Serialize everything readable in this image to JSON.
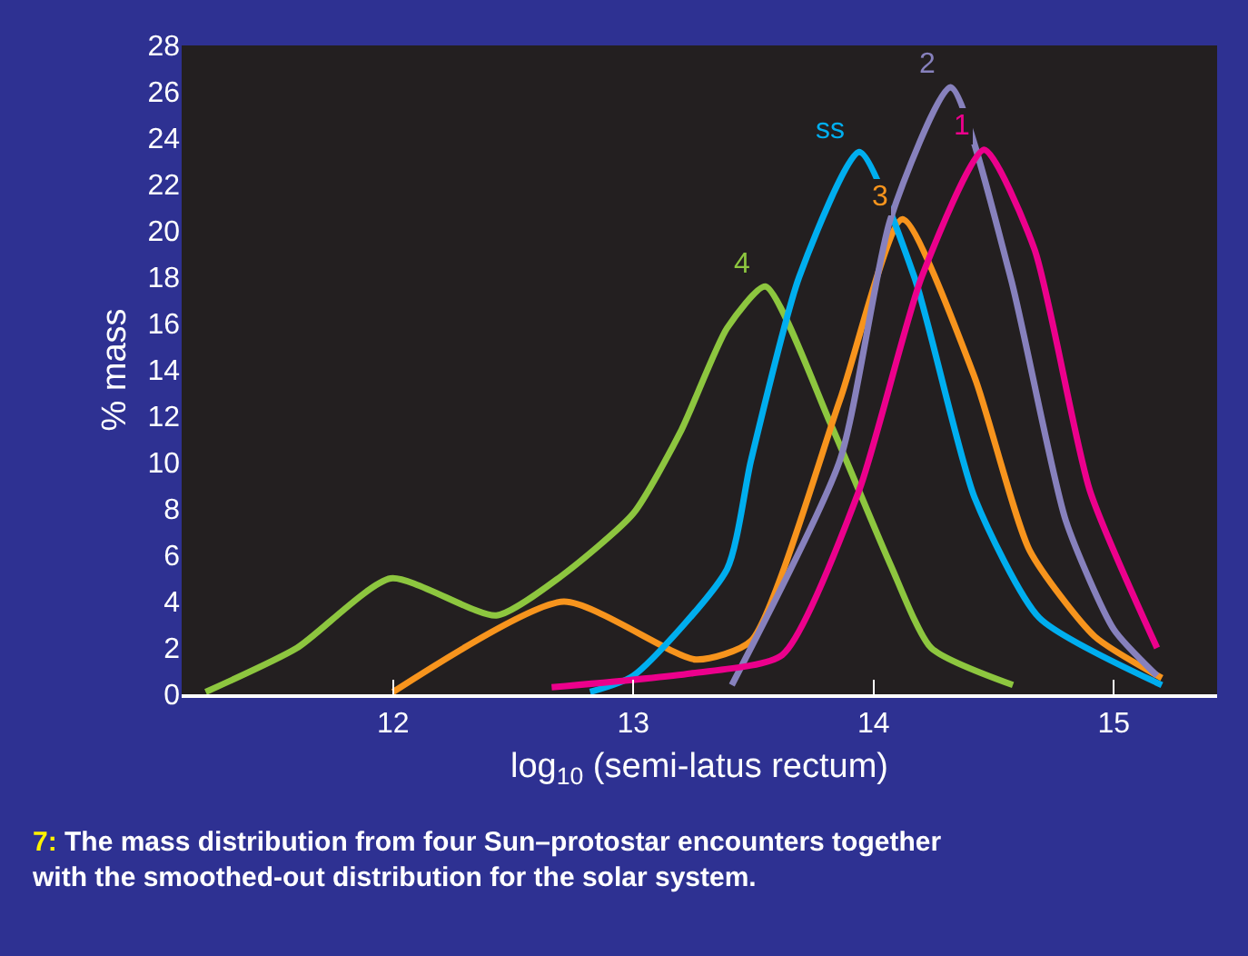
{
  "chart_data": {
    "type": "line",
    "xlabel": "log$_{10}$ (semi-latus rectum)",
    "ylabel": "% mass",
    "xlim": [
      11.12,
      15.43
    ],
    "ylim": [
      0,
      28
    ],
    "xticks": [
      12,
      13,
      14,
      15
    ],
    "yticks": [
      0,
      2,
      4,
      6,
      8,
      10,
      12,
      14,
      16,
      18,
      20,
      22,
      24,
      26,
      28
    ],
    "grid": false,
    "marker": "none",
    "line_style": "solid",
    "series": [
      {
        "name": "4",
        "color": "#8dc63f",
        "x": [
          11.22,
          11.6,
          11.99,
          12.43,
          12.7,
          13.0,
          13.2,
          13.39,
          13.55,
          13.82,
          14.07,
          14.24,
          14.58
        ],
        "values": [
          0.1,
          2.0,
          5.0,
          3.4,
          5.1,
          7.8,
          11.4,
          15.8,
          17.6,
          11.7,
          5.6,
          2.0,
          0.4
        ]
      },
      {
        "name": "3",
        "color": "#f7941d",
        "x": [
          12.0,
          12.71,
          13.26,
          13.49,
          13.86,
          14.12,
          14.42,
          14.65,
          14.92,
          15.2
        ],
        "values": [
          0.1,
          4.0,
          1.5,
          2.3,
          12.7,
          20.5,
          13.7,
          6.2,
          2.5,
          0.7
        ]
      },
      {
        "name": "ss",
        "color": "#00aeef",
        "x": [
          12.82,
          13.0,
          13.39,
          13.49,
          13.69,
          13.94,
          14.17,
          14.42,
          14.69,
          15.2
        ],
        "values": [
          0.1,
          0.8,
          5.4,
          10.1,
          18.0,
          23.4,
          18.0,
          8.5,
          3.3,
          0.4
        ]
      },
      {
        "name": "2",
        "color": "#8781bd",
        "x": [
          13.41,
          13.86,
          14.07,
          14.32,
          14.57,
          14.8,
          15.0,
          15.18
        ],
        "values": [
          0.4,
          10.1,
          20.5,
          26.2,
          18.0,
          7.5,
          2.8,
          0.8
        ]
      },
      {
        "name": "1",
        "color": "#ec008c",
        "x": [
          12.66,
          13.24,
          13.62,
          13.94,
          14.2,
          14.46,
          14.67,
          14.9,
          15.18
        ],
        "values": [
          0.3,
          0.9,
          1.7,
          8.8,
          18.0,
          23.5,
          19.2,
          8.8,
          2.0
        ]
      }
    ],
    "annotations": [
      "7: The mass distribution from four Sun–protostar encounters together with the smoothed-out distribution for the solar system."
    ]
  }
}
